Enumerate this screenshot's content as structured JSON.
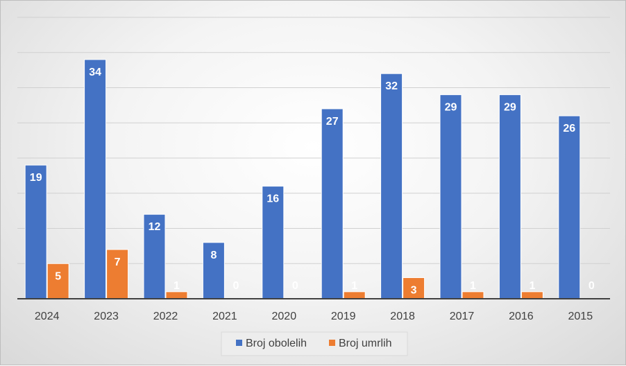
{
  "chart_data": {
    "type": "bar",
    "categories": [
      "2024",
      "2023",
      "2022",
      "2021",
      "2020",
      "2019",
      "2018",
      "2017",
      "2016",
      "2015"
    ],
    "series": [
      {
        "name": "Broj obolelih",
        "color": "#4472c4",
        "values": [
          19,
          34,
          12,
          8,
          16,
          27,
          32,
          29,
          29,
          26
        ]
      },
      {
        "name": "Broj umrlih",
        "color": "#ed7d31",
        "values": [
          5,
          7,
          1,
          0,
          0,
          1,
          3,
          1,
          1,
          0
        ]
      }
    ],
    "title": "",
    "xlabel": "",
    "ylabel": "",
    "ylim": [
      0,
      40
    ],
    "grid": true,
    "legend": "bottom"
  }
}
